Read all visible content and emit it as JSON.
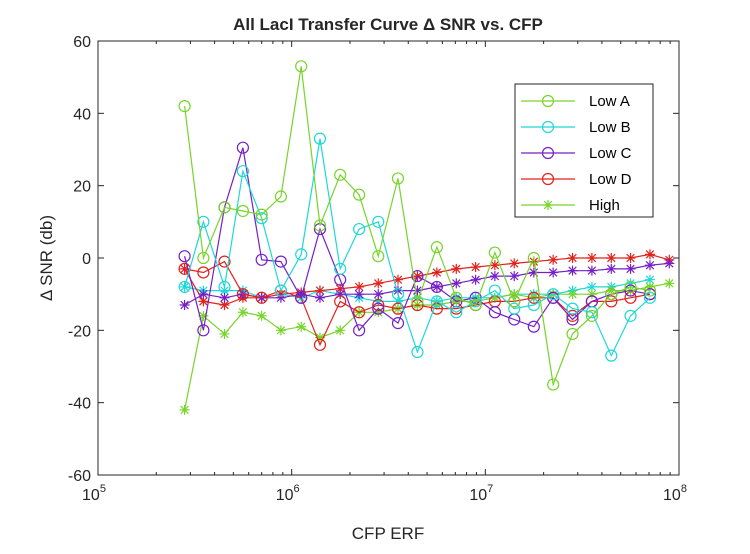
{
  "chart_data": {
    "type": "line",
    "title": "All LacI Transfer Curve Δ SNR vs. CFP",
    "xlabel": "CFP ERF",
    "ylabel": "Δ SNR (db)",
    "xscale": "log",
    "xlim": [
      100000,
      100000000
    ],
    "ylim": [
      -60,
      60
    ],
    "x_ticks": [
      {
        "base": "10",
        "exp": "5"
      },
      {
        "base": "10",
        "exp": "6"
      },
      {
        "base": "10",
        "exp": "7"
      },
      {
        "base": "10",
        "exp": "8"
      }
    ],
    "y_ticks": [
      "-60",
      "-40",
      "-20",
      "0",
      "20",
      "40",
      "60"
    ],
    "y_tick_values": [
      -60,
      -40,
      -20,
      0,
      20,
      40,
      60
    ],
    "legend_position": "top-right",
    "grid": false,
    "series": [
      {
        "name": "Low A",
        "color": "#77d42a",
        "marker": "circle",
        "x": [
          280000,
          350000,
          450000,
          560000,
          700000,
          880000,
          1120000,
          1400000,
          1780000,
          2230000,
          2800000,
          3540000,
          4460000,
          5620000,
          7080000,
          8910000,
          11200000,
          14100000,
          17800000,
          22400000,
          28200000,
          35500000,
          44700000,
          56200000,
          70800000
        ],
        "y": [
          42,
          0,
          14,
          13,
          12,
          17,
          53,
          9,
          23,
          17.5,
          0.5,
          22,
          -12,
          3,
          -11,
          -13,
          1.5,
          -12,
          0,
          -35,
          -21,
          -16,
          -10,
          -8,
          -9
        ]
      },
      {
        "name": "Low B",
        "color": "#1ed8d8",
        "marker": "circle",
        "x": [
          280000,
          350000,
          450000,
          560000,
          700000,
          880000,
          1120000,
          1400000,
          1780000,
          2230000,
          2800000,
          3540000,
          4460000,
          5620000,
          7080000,
          8910000,
          11200000,
          14100000,
          17800000,
          22400000,
          28200000,
          35500000,
          44700000,
          56200000,
          70800000
        ],
        "y": [
          -8,
          10,
          -8,
          24,
          11,
          -9,
          1,
          33,
          -3,
          8,
          10,
          -10,
          -26,
          -12,
          -15,
          -12,
          -9,
          -14,
          -13,
          -10,
          -14,
          -15,
          -27,
          -16,
          -11
        ]
      },
      {
        "name": "Low C",
        "color": "#7520c7",
        "marker": "circle",
        "x": [
          280000,
          350000,
          450000,
          560000,
          700000,
          880000,
          1120000,
          1400000,
          1780000,
          2230000,
          2800000,
          3540000,
          4460000,
          5620000,
          7080000,
          8910000,
          11200000,
          14100000,
          17800000,
          22400000,
          28200000,
          35500000,
          44700000,
          56200000,
          70800000
        ],
        "y": [
          0.5,
          -20,
          14,
          30.5,
          -0.5,
          -1,
          -11,
          8,
          -6,
          -20,
          -14,
          -18,
          -5,
          -8,
          -12,
          -11,
          -15,
          -17,
          -19,
          -11,
          -17,
          -12,
          -10,
          -9,
          -10
        ]
      },
      {
        "name": "Low D",
        "color": "#e3211b",
        "marker": "circle",
        "x": [
          280000,
          350000,
          450000,
          560000,
          700000,
          880000,
          1120000,
          1400000,
          1780000,
          2230000,
          2800000,
          3540000,
          4460000,
          5620000,
          7080000,
          8910000,
          11200000,
          14100000,
          17800000,
          22400000,
          28200000,
          35500000,
          44700000,
          56200000,
          70800000
        ],
        "y": [
          -3,
          -4,
          -1,
          -10,
          -11,
          -9,
          -11,
          -24,
          -12,
          -15,
          -13,
          -14,
          -13,
          -14,
          -14,
          -13,
          -12,
          -12,
          -11,
          -11,
          -16,
          -12,
          -12,
          -11,
          -10
        ]
      },
      {
        "name": "High",
        "color": "#77d42a",
        "marker": "asterisk",
        "x": [
          280000,
          350000,
          450000,
          560000,
          700000,
          880000,
          1120000,
          1400000,
          1780000,
          2230000,
          2800000,
          3540000,
          4460000,
          5620000,
          7080000,
          8910000,
          11200000,
          14100000,
          17800000,
          22400000,
          28200000,
          35500000,
          44700000,
          56200000,
          70800000,
          89100000
        ],
        "y": [
          -42,
          -16,
          -21,
          -15,
          -16,
          -20,
          -19,
          -22,
          -20,
          -15,
          -15,
          -14,
          -13,
          -13,
          -12,
          -12,
          -11,
          -10,
          -11,
          -10,
          -10,
          -10,
          -9,
          -9,
          -8,
          -7
        ]
      },
      {
        "name": "",
        "color": "#7520c7",
        "marker": "asterisk",
        "x": [
          280000,
          350000,
          450000,
          560000,
          700000,
          880000,
          1120000,
          1400000,
          1780000,
          2230000,
          2800000,
          3540000,
          4460000,
          5620000,
          7080000,
          8910000,
          11200000,
          14100000,
          17800000,
          22400000,
          28200000,
          35500000,
          44700000,
          56200000,
          70800000,
          89100000
        ],
        "y": [
          -13,
          -10,
          -11,
          -10,
          -11,
          -11,
          -10,
          -11,
          -10,
          -10,
          -10,
          -9,
          -9,
          -8,
          -7,
          -6,
          -5,
          -5,
          -4,
          -4,
          -3.5,
          -3.5,
          -3,
          -3,
          -2,
          -1.5
        ]
      },
      {
        "name": "",
        "color": "#e3211b",
        "marker": "asterisk",
        "x": [
          280000,
          350000,
          450000,
          560000,
          700000,
          880000,
          1120000,
          1400000,
          1780000,
          2230000,
          2800000,
          3540000,
          4460000,
          5620000,
          7080000,
          8910000,
          11200000,
          14100000,
          17800000,
          22400000,
          28200000,
          35500000,
          44700000,
          56200000,
          70800000,
          89100000
        ],
        "y": [
          -3,
          -12,
          -13,
          -11,
          -11,
          -10,
          -9.5,
          -9,
          -8.5,
          -8,
          -7,
          -6,
          -5,
          -4,
          -3,
          -2.5,
          -2,
          -1.5,
          -1,
          -0.5,
          0,
          0,
          0,
          0,
          1,
          -0.5
        ]
      },
      {
        "name": "",
        "color": "#1ed8d8",
        "marker": "asterisk",
        "x": [
          280000,
          350000,
          450000,
          560000,
          700000,
          880000,
          1120000,
          1400000,
          1780000,
          2230000,
          2800000,
          3540000,
          4460000,
          5620000,
          7080000,
          8910000,
          11200000,
          14100000,
          17800000,
          22400000,
          28200000,
          35500000,
          44700000,
          56200000,
          70800000
        ],
        "y": [
          -8,
          -9,
          -9,
          -9,
          -11,
          -10,
          -11,
          -9,
          -10,
          -11,
          -12,
          -12,
          -11,
          -12,
          -11,
          -11,
          -11,
          -10,
          -10,
          -10,
          -9,
          -8,
          -8,
          -7,
          -6
        ]
      }
    ]
  }
}
